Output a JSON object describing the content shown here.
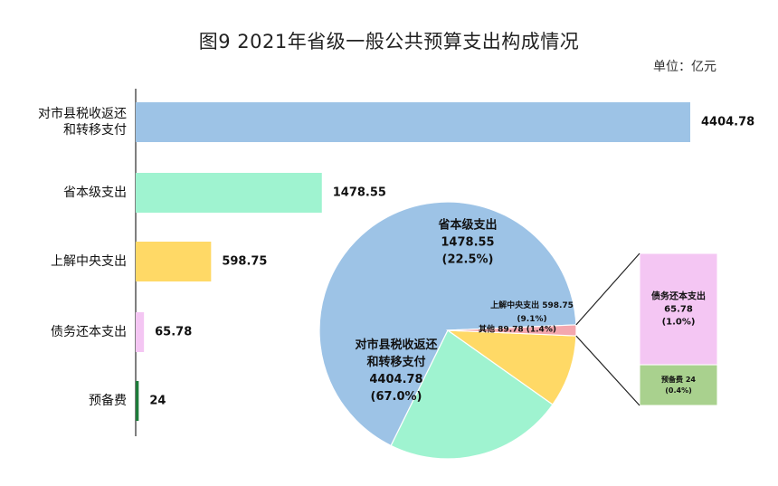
{
  "chart_data": {
    "type": "bar",
    "title": "图9   2021年省级一般公共预算支出构成情况",
    "unit": "单位：亿元",
    "categories": [
      [
        "对市县税收返还",
        "和转移支付"
      ],
      [
        "省本级支出"
      ],
      [
        "上解中央支出"
      ],
      [
        "债务还本支出"
      ],
      [
        "预备费"
      ]
    ],
    "values": [
      4404.78,
      1478.55,
      598.75,
      65.78,
      24
    ],
    "value_labels": [
      "4404.78",
      "1478.55",
      "598.75",
      "65.78",
      "24"
    ],
    "colors": [
      "#9dc3e6",
      "#9ff3d0",
      "#ffd966",
      "#f4c6f3",
      "#1e7b3a"
    ],
    "pie": {
      "type": "pie",
      "slices": [
        {
          "label": [
            "对市县税收返还",
            "和转移支付"
          ],
          "value": 4404.78,
          "value_label": "4404.78",
          "percent": "(67.0%)",
          "color": "#9dc3e6"
        },
        {
          "label": [
            "省本级支出"
          ],
          "value": 1478.55,
          "value_label": "1478.55",
          "percent": "(22.5%)",
          "color": "#9ff3d0"
        },
        {
          "label": [
            "上解中央支出 598.75"
          ],
          "value": 598.75,
          "percent": "(9.1%)",
          "color": "#ffd966"
        },
        {
          "label": [
            "其他 89.78 (1.4%)"
          ],
          "value": 89.78,
          "color": "#f4a7ae"
        }
      ]
    },
    "breakdown": {
      "type": "bar",
      "segments": [
        {
          "label": "债务还本支出",
          "value": 65.78,
          "value_label": "65.78",
          "percent": "(1.0%)",
          "color": "#f4c6f3"
        },
        {
          "label": "预备费 24",
          "value": 24,
          "percent": "(0.4%)",
          "color": "#a9d18e"
        }
      ]
    }
  }
}
